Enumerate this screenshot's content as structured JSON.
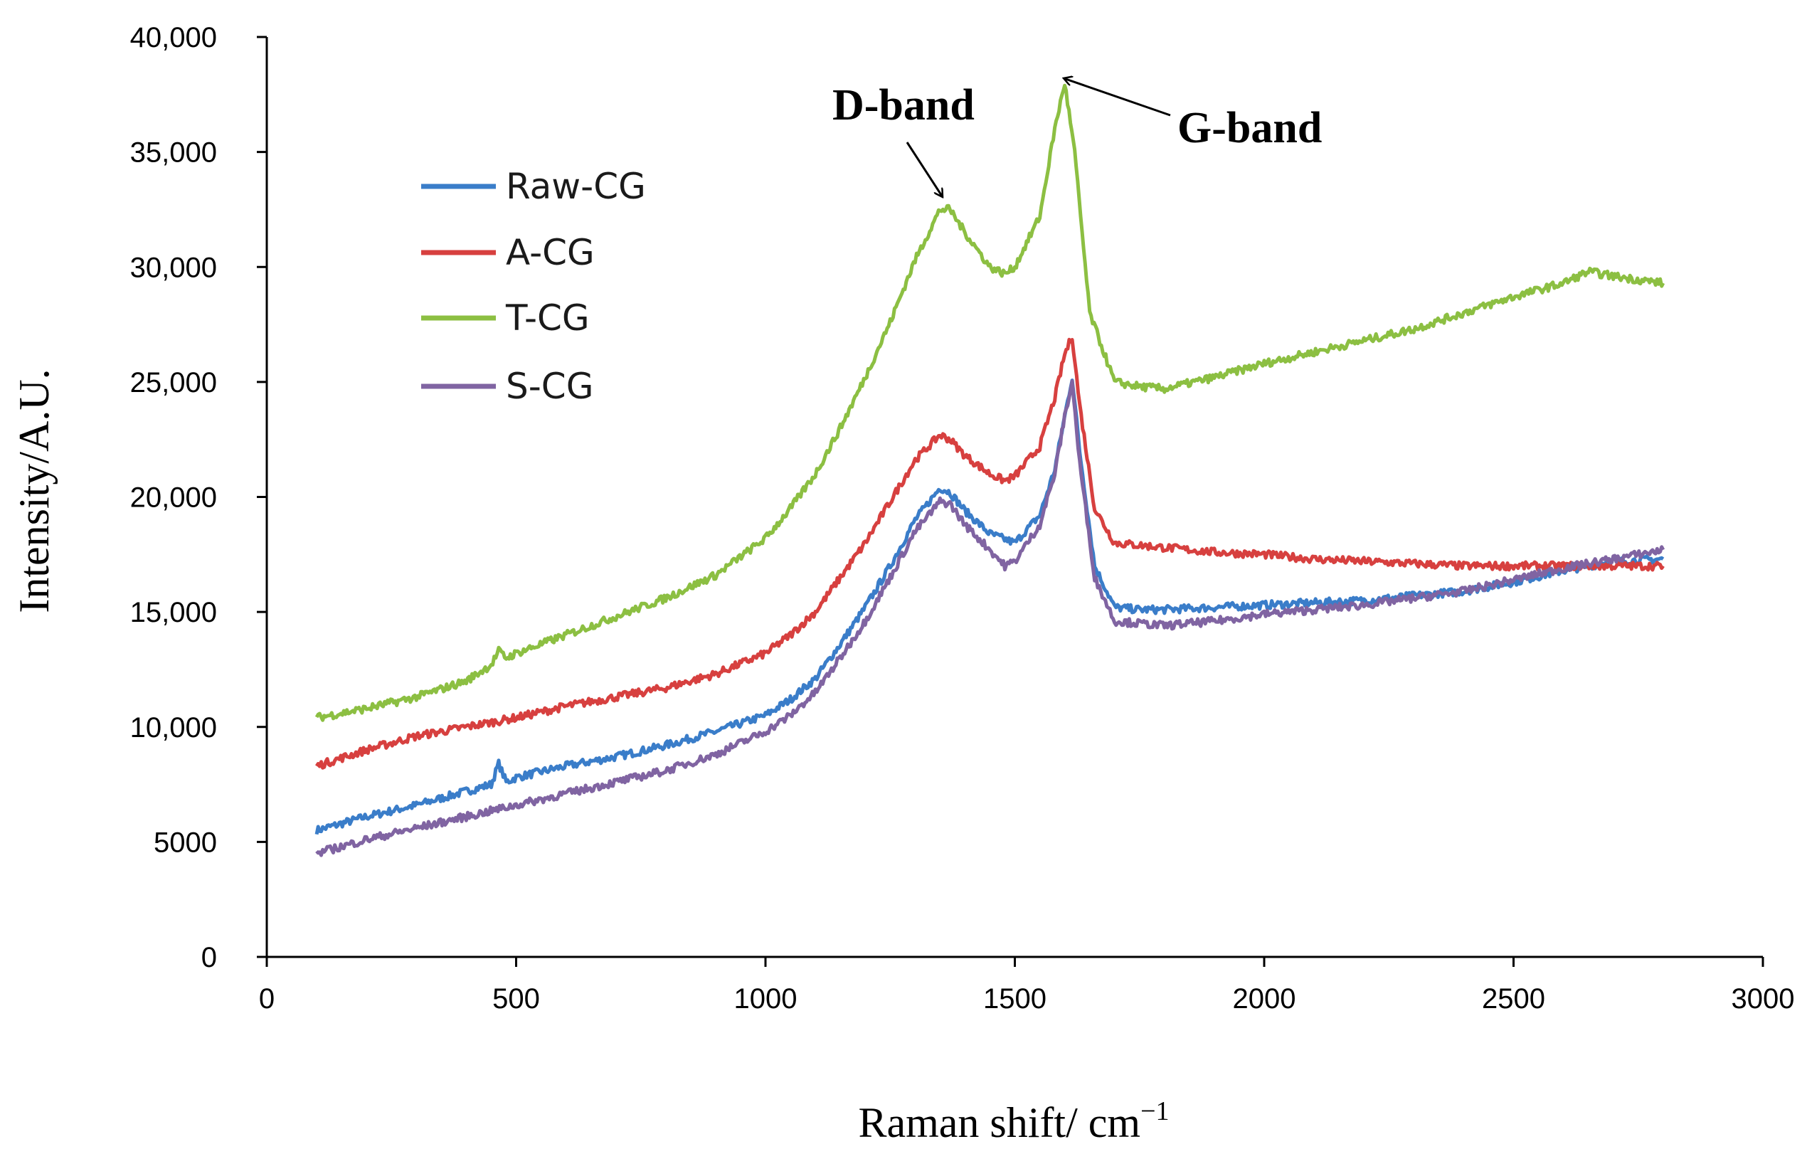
{
  "chart_data": {
    "type": "line",
    "title": "",
    "xlabel": "Raman shift/ cm",
    "xlabel_sup": "−1",
    "ylabel": "Intensity/A.U.",
    "xlim": [
      0,
      3000
    ],
    "ylim": [
      0,
      40000
    ],
    "grid": false,
    "legend_position": "top-left",
    "x_ticks": [
      0,
      500,
      1000,
      1500,
      2000,
      2500,
      3000
    ],
    "x_tick_labels": [
      "0",
      "500",
      "1000",
      "1500",
      "2000",
      "2500",
      "3000"
    ],
    "y_ticks": [
      0,
      5000,
      10000,
      15000,
      20000,
      25000,
      30000,
      35000,
      40000
    ],
    "y_tick_labels": [
      "0",
      "5000",
      "10,000",
      "15,000",
      "20,000",
      "25,000",
      "30,000",
      "35,000",
      "40,000"
    ],
    "series": [
      {
        "name": "Raw-CG",
        "color": "#3a7dc9",
        "x": [
          100,
          200,
          300,
          400,
          450,
          465,
          480,
          500,
          600,
          700,
          800,
          900,
          1000,
          1050,
          1100,
          1150,
          1200,
          1250,
          1300,
          1350,
          1370,
          1400,
          1450,
          1500,
          1550,
          1580,
          1600,
          1615,
          1630,
          1660,
          1700,
          1750,
          1800,
          1900,
          2000,
          2100,
          2200,
          2300,
          2400,
          2500,
          2600,
          2700,
          2800
        ],
        "values": [
          5500,
          6100,
          6600,
          7200,
          7500,
          8400,
          7600,
          7800,
          8300,
          8700,
          9200,
          9800,
          10500,
          11200,
          12100,
          13600,
          15200,
          17000,
          19000,
          20400,
          20200,
          19400,
          18400,
          18000,
          19200,
          21200,
          23500,
          25200,
          22000,
          17000,
          15200,
          15100,
          15100,
          15200,
          15300,
          15400,
          15500,
          15700,
          15900,
          16300,
          16800,
          17200,
          17300
        ]
      },
      {
        "name": "A-CG",
        "color": "#d7403f",
        "x": [
          100,
          200,
          300,
          400,
          500,
          600,
          700,
          800,
          900,
          1000,
          1050,
          1100,
          1150,
          1200,
          1250,
          1300,
          1350,
          1370,
          1400,
          1450,
          1480,
          1500,
          1550,
          1580,
          1600,
          1615,
          1630,
          1660,
          1700,
          1750,
          1800,
          1900,
          2000,
          2100,
          2200,
          2300,
          2400,
          2500,
          2600,
          2700,
          2800
        ],
        "values": [
          8300,
          9000,
          9600,
          10000,
          10400,
          10900,
          11300,
          11700,
          12300,
          13200,
          14000,
          15000,
          16500,
          18000,
          19800,
          21600,
          22700,
          22500,
          21800,
          21000,
          20700,
          20900,
          22200,
          24300,
          26200,
          27000,
          24000,
          19500,
          18000,
          17900,
          17800,
          17600,
          17500,
          17300,
          17200,
          17100,
          17000,
          17000,
          17000,
          17000,
          17000
        ]
      },
      {
        "name": "T-CG",
        "color": "#8cbf42",
        "x": [
          100,
          200,
          300,
          400,
          450,
          465,
          480,
          500,
          600,
          700,
          800,
          900,
          1000,
          1050,
          1100,
          1150,
          1200,
          1250,
          1300,
          1350,
          1370,
          1400,
          1450,
          1480,
          1500,
          1550,
          1580,
          1600,
          1620,
          1650,
          1700,
          1750,
          1800,
          1900,
          2000,
          2100,
          2200,
          2300,
          2400,
          2500,
          2600,
          2650,
          2700,
          2800
        ],
        "values": [
          10400,
          10800,
          11300,
          12000,
          12700,
          13300,
          13000,
          13200,
          14000,
          14800,
          15600,
          16600,
          18200,
          19500,
          21000,
          23000,
          25200,
          27600,
          30300,
          32500,
          32500,
          31500,
          30000,
          29700,
          30000,
          32200,
          36000,
          38000,
          35000,
          28000,
          25000,
          24800,
          24700,
          25200,
          25800,
          26300,
          26800,
          27300,
          28000,
          28700,
          29300,
          29800,
          29600,
          29300
        ]
      },
      {
        "name": "S-CG",
        "color": "#8064a2",
        "x": [
          100,
          200,
          300,
          400,
          500,
          600,
          700,
          800,
          900,
          1000,
          1050,
          1100,
          1150,
          1200,
          1250,
          1300,
          1350,
          1370,
          1400,
          1450,
          1480,
          1500,
          1550,
          1580,
          1600,
          1615,
          1630,
          1660,
          1700,
          1750,
          1800,
          1900,
          2000,
          2100,
          2200,
          2300,
          2400,
          2500,
          2600,
          2700,
          2800
        ],
        "values": [
          4500,
          5100,
          5600,
          6100,
          6600,
          7100,
          7600,
          8100,
          8800,
          9800,
          10500,
          11500,
          13000,
          14600,
          16500,
          18500,
          19800,
          19700,
          18800,
          17700,
          17000,
          17200,
          18800,
          21000,
          23500,
          25000,
          21500,
          16500,
          14600,
          14500,
          14400,
          14600,
          14900,
          15100,
          15300,
          15600,
          15900,
          16400,
          16900,
          17300,
          17700
        ]
      }
    ],
    "annotations": [
      {
        "text": "D-band",
        "points_to": [
          1360,
          32500
        ]
      },
      {
        "text": "G-band",
        "points_to": [
          1595,
          38000
        ]
      }
    ]
  }
}
